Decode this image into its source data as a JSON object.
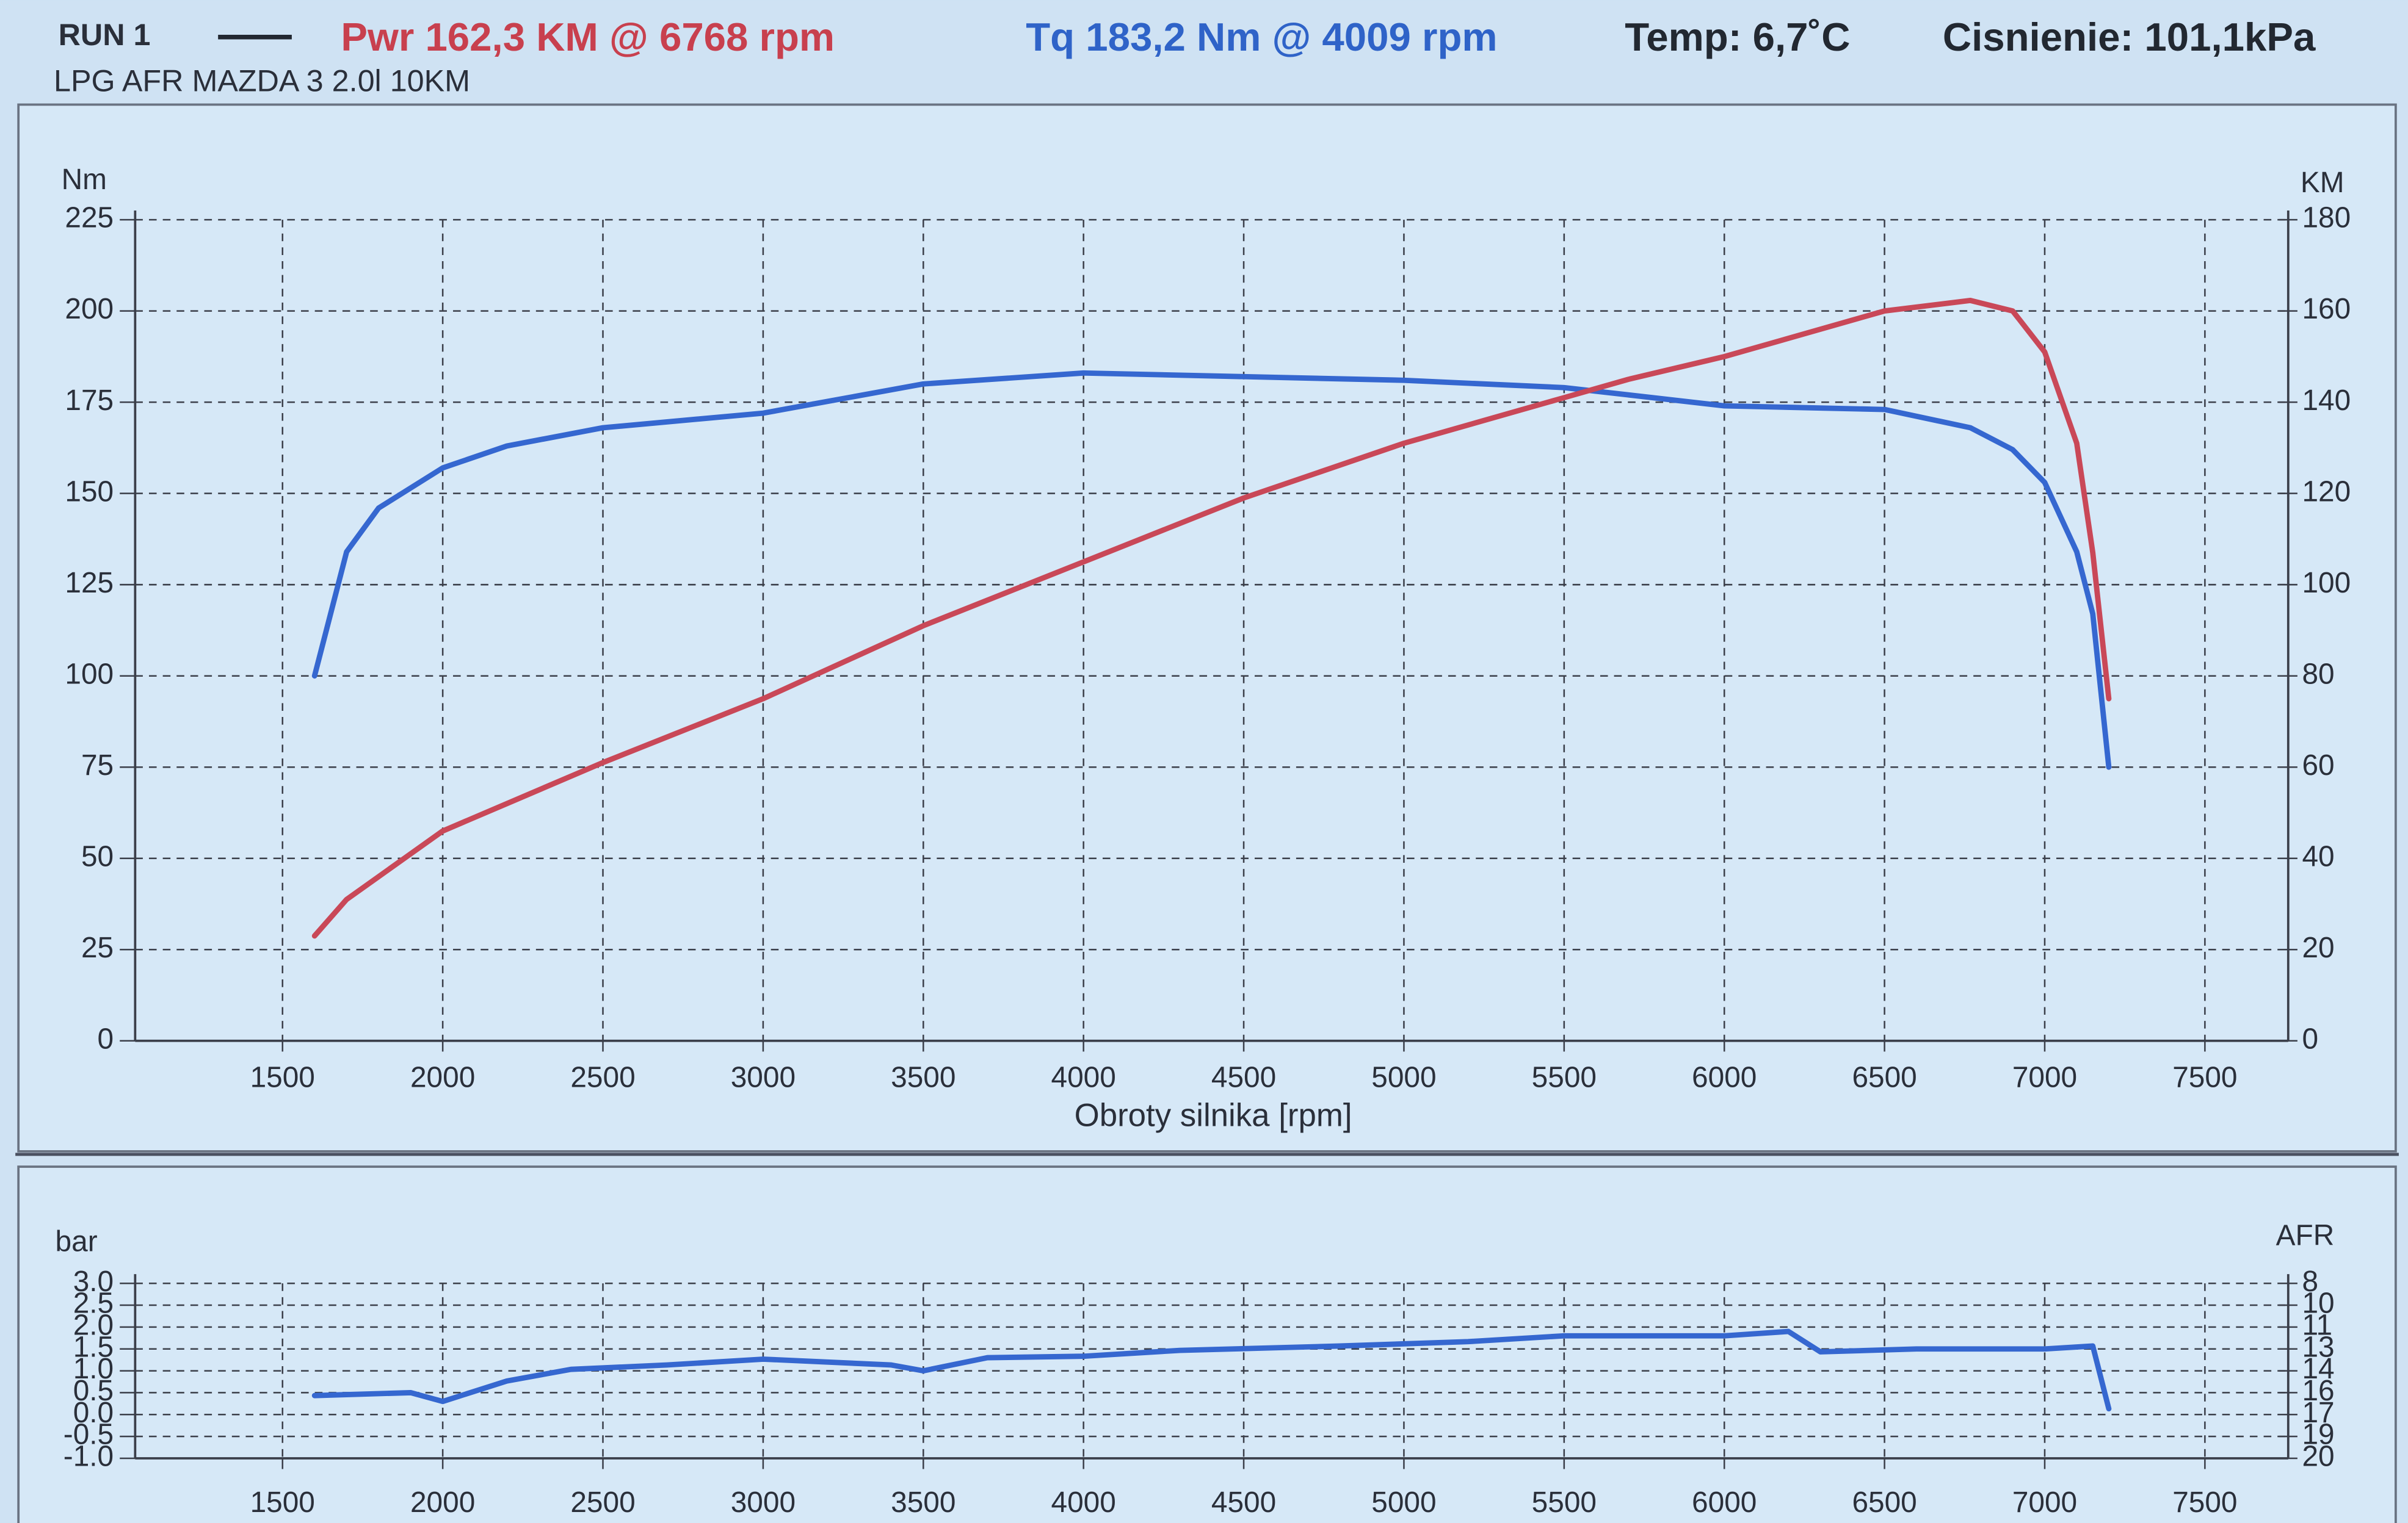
{
  "chart_data": [
    {
      "type": "line",
      "title": "RUN 1",
      "subtitle": "LPG AFR MAZDA 3 2.0l 10KM",
      "annotations": [
        {
          "text": "Pwr  162,3 KM @ 6768 rpm",
          "color": "#c8404e"
        },
        {
          "text": "Tq 183,2 Nm @ 4009 rpm",
          "color": "#2f63c8"
        },
        {
          "text": "Temp: 6,7˚C",
          "color": "#222831"
        },
        {
          "text": "Cisnienie: 101,1kPa",
          "color": "#222831"
        }
      ],
      "xlabel": "Obroty silnika [rpm]",
      "ylabel": "Nm",
      "y2label": "KM",
      "x": [
        1600,
        1700,
        1800,
        2000,
        2200,
        2500,
        3000,
        3500,
        4000,
        4500,
        5000,
        5500,
        5700,
        6000,
        6500,
        6768,
        6900,
        7000,
        7100,
        7150,
        7200
      ],
      "series": [
        {
          "color": "#3567d0",
          "axis": "y",
          "values": [
            100,
            134,
            146,
            157,
            163,
            168,
            172,
            180,
            183,
            182,
            181,
            179,
            177,
            174,
            173,
            168,
            162,
            153,
            134,
            117,
            75
          ]
        },
        {
          "color": "#c94858",
          "axis": "y2",
          "values": [
            23,
            31,
            36,
            46,
            52,
            61,
            75,
            91,
            105,
            119,
            131,
            141,
            145,
            150,
            160,
            162.3,
            160,
            151,
            131,
            107,
            75
          ]
        }
      ],
      "xlim": [
        1040,
        7760
      ],
      "xticks": [
        1500,
        2000,
        2500,
        3000,
        3500,
        4000,
        4500,
        5000,
        5500,
        6000,
        6500,
        7000,
        7500
      ],
      "ylim": [
        0,
        225
      ],
      "yticks": [
        0,
        25,
        50,
        75,
        100,
        125,
        150,
        175,
        200,
        225
      ],
      "y2lim": [
        0,
        180
      ],
      "y2ticks": [
        0,
        20,
        40,
        60,
        80,
        100,
        120,
        140,
        160,
        180
      ],
      "grid": true
    },
    {
      "type": "line",
      "ylabel": "bar",
      "y2label": "AFR",
      "x": [
        1600,
        1900,
        2000,
        2200,
        2400,
        2700,
        3000,
        3400,
        3500,
        3700,
        4000,
        4300,
        4800,
        5200,
        5500,
        6000,
        6200,
        6300,
        6600,
        7000,
        7150,
        7200
      ],
      "series": [
        {
          "color": "#3567d0",
          "axis": "y2",
          "values": [
            15.7,
            15.5,
            16.1,
            14.7,
            13.9,
            13.6,
            13.2,
            13.6,
            14.0,
            13.1,
            13.0,
            12.6,
            12.3,
            12.0,
            11.6,
            11.6,
            11.3,
            12.7,
            12.5,
            12.5,
            12.3,
            16.6
          ]
        }
      ],
      "xlim": [
        1040,
        7760
      ],
      "xticks": [
        1500,
        2000,
        2500,
        3000,
        3500,
        4000,
        4500,
        5000,
        5500,
        6000,
        6500,
        7000,
        7500
      ],
      "ylim": [
        -1,
        3
      ],
      "yticks": [
        {
          "value": -1,
          "label": "-1.0"
        },
        -0.5,
        {
          "value": 0,
          "label": "0.0"
        },
        0.5,
        {
          "value": 1,
          "label": "1.0"
        },
        1.5,
        {
          "value": 2,
          "label": "2.0"
        },
        2.5,
        {
          "value": 3,
          "label": "3.0"
        }
      ],
      "y2lim": [
        20,
        8
      ],
      "y2ticks": [
        20,
        {
          "value": 18.5,
          "label": "19"
        },
        17,
        {
          "value": 15.5,
          "label": "16"
        },
        14,
        {
          "value": 12.5,
          "label": "13"
        },
        11,
        {
          "value": 9.5,
          "label": "10"
        },
        8
      ],
      "grid": true
    }
  ]
}
